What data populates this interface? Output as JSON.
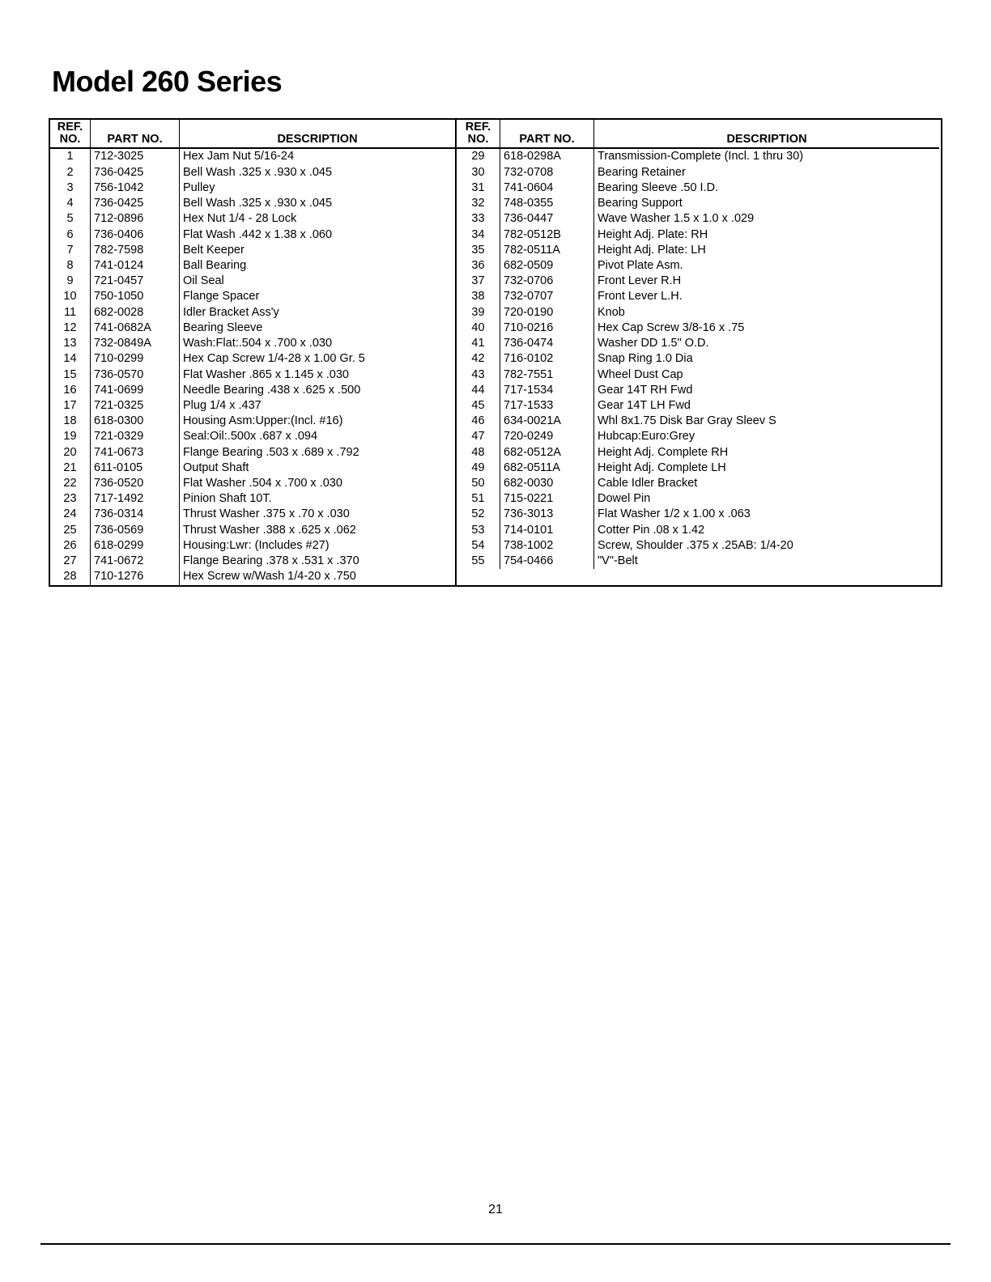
{
  "title": "Model 260 Series",
  "page_number": "21",
  "headers": {
    "ref_l1": "REF.",
    "ref_l2": "NO.",
    "part": "PART NO.",
    "desc": "DESCRIPTION"
  },
  "column_widths": {
    "ref": 50,
    "part": 110
  },
  "left_rows": [
    {
      "ref": "1",
      "part": "712-3025",
      "desc": "Hex Jam Nut 5/16-24"
    },
    {
      "ref": "2",
      "part": "736-0425",
      "desc": "Bell Wash .325 x .930 x .045"
    },
    {
      "ref": "3",
      "part": "756-1042",
      "desc": "Pulley"
    },
    {
      "ref": "4",
      "part": "736-0425",
      "desc": "Bell Wash .325 x .930 x .045"
    },
    {
      "ref": "5",
      "part": "712-0896",
      "desc": "Hex Nut 1/4 - 28 Lock"
    },
    {
      "ref": "6",
      "part": "736-0406",
      "desc": "Flat Wash .442 x 1.38 x .060"
    },
    {
      "ref": "7",
      "part": "782-7598",
      "desc": "Belt Keeper"
    },
    {
      "ref": "8",
      "part": "741-0124",
      "desc": "Ball Bearing"
    },
    {
      "ref": "9",
      "part": "721-0457",
      "desc": "Oil Seal"
    },
    {
      "ref": "10",
      "part": "750-1050",
      "desc": "Flange Spacer"
    },
    {
      "ref": "11",
      "part": "682-0028",
      "desc": "Idler Bracket Ass'y"
    },
    {
      "ref": "12",
      "part": "741-0682A",
      "desc": "Bearing Sleeve"
    },
    {
      "ref": "13",
      "part": "732-0849A",
      "desc": "Wash:Flat:.504 x .700 x .030"
    },
    {
      "ref": "14",
      "part": "710-0299",
      "desc": "Hex Cap Screw 1/4-28 x 1.00 Gr. 5"
    },
    {
      "ref": "15",
      "part": "736-0570",
      "desc": "Flat Washer .865 x 1.145 x .030"
    },
    {
      "ref": "16",
      "part": "741-0699",
      "desc": "Needle Bearing .438 x .625 x .500"
    },
    {
      "ref": "17",
      "part": "721-0325",
      "desc": "Plug 1/4 x .437"
    },
    {
      "ref": "18",
      "part": "618-0300",
      "desc": "Housing Asm:Upper:(Incl. #16)"
    },
    {
      "ref": "19",
      "part": "721-0329",
      "desc": "Seal:Oil:.500x .687 x .094"
    },
    {
      "ref": "20",
      "part": "741-0673",
      "desc": "Flange Bearing .503 x .689 x .792"
    },
    {
      "ref": "21",
      "part": "611-0105",
      "desc": "Output Shaft"
    },
    {
      "ref": "22",
      "part": "736-0520",
      "desc": "Flat Washer .504 x .700 x .030"
    },
    {
      "ref": "23",
      "part": "717-1492",
      "desc": "Pinion Shaft 10T."
    },
    {
      "ref": "24",
      "part": "736-0314",
      "desc": "Thrust Washer .375 x .70 x .030"
    },
    {
      "ref": "25",
      "part": "736-0569",
      "desc": "Thrust Washer .388 x .625 x .062"
    },
    {
      "ref": "26",
      "part": "618-0299",
      "desc": "Housing:Lwr: (Includes #27)"
    },
    {
      "ref": "27",
      "part": "741-0672",
      "desc": "Flange Bearing .378 x .531 x .370"
    },
    {
      "ref": "28",
      "part": "710-1276",
      "desc": "Hex Screw w/Wash 1/4-20 x .750"
    }
  ],
  "right_rows": [
    {
      "ref": "29",
      "part": "618-0298A",
      "desc": "Transmission-Complete (Incl. 1 thru 30)"
    },
    {
      "ref": "30",
      "part": "732-0708",
      "desc": "Bearing Retainer"
    },
    {
      "ref": "31",
      "part": "741-0604",
      "desc": "Bearing Sleeve .50 I.D."
    },
    {
      "ref": "32",
      "part": "748-0355",
      "desc": "Bearing Support"
    },
    {
      "ref": "33",
      "part": "736-0447",
      "desc": "Wave Washer 1.5 x 1.0 x .029"
    },
    {
      "ref": "34",
      "part": "782-0512B",
      "desc": "Height Adj. Plate: RH"
    },
    {
      "ref": "35",
      "part": "782-0511A",
      "desc": "Height Adj. Plate: LH"
    },
    {
      "ref": "36",
      "part": "682-0509",
      "desc": "Pivot Plate Asm."
    },
    {
      "ref": "37",
      "part": "732-0706",
      "desc": "Front Lever R.H"
    },
    {
      "ref": "38",
      "part": "732-0707",
      "desc": "Front Lever L.H."
    },
    {
      "ref": "39",
      "part": "720-0190",
      "desc": "Knob"
    },
    {
      "ref": "40",
      "part": "710-0216",
      "desc": "Hex Cap Screw 3/8-16 x .75"
    },
    {
      "ref": "41",
      "part": "736-0474",
      "desc": "Washer DD 1.5\" O.D."
    },
    {
      "ref": "42",
      "part": "716-0102",
      "desc": "Snap Ring 1.0 Dia"
    },
    {
      "ref": "43",
      "part": "782-7551",
      "desc": "Wheel Dust Cap"
    },
    {
      "ref": "44",
      "part": "717-1534",
      "desc": "Gear 14T RH Fwd"
    },
    {
      "ref": "45",
      "part": "717-1533",
      "desc": "Gear 14T LH Fwd"
    },
    {
      "ref": "46",
      "part": "634-0021A",
      "desc": "Whl 8x1.75 Disk Bar Gray Sleev S"
    },
    {
      "ref": "47",
      "part": "720-0249",
      "desc": "Hubcap:Euro:Grey"
    },
    {
      "ref": "48",
      "part": "682-0512A",
      "desc": "Height Adj. Complete RH"
    },
    {
      "ref": "49",
      "part": "682-0511A",
      "desc": "Height Adj. Complete LH"
    },
    {
      "ref": "50",
      "part": "682-0030",
      "desc": "Cable Idler Bracket"
    },
    {
      "ref": "51",
      "part": "715-0221",
      "desc": "Dowel Pin"
    },
    {
      "ref": "52",
      "part": "736-3013",
      "desc": "Flat Washer 1/2 x 1.00 x .063"
    },
    {
      "ref": "53",
      "part": "714-0101",
      "desc": "Cotter Pin .08 x 1.42"
    },
    {
      "ref": "54",
      "part": "738-1002",
      "desc": "Screw, Shoulder .375 x .25AB: 1/4-20"
    },
    {
      "ref": "55",
      "part": "754-0466",
      "desc": "\"V\"-Belt"
    }
  ],
  "colors": {
    "background": "#ffffff",
    "text": "#000000",
    "border": "#000000"
  },
  "typography": {
    "title_fontsize_pt": 27,
    "body_fontsize_pt": 11,
    "font_family": "Arial"
  }
}
